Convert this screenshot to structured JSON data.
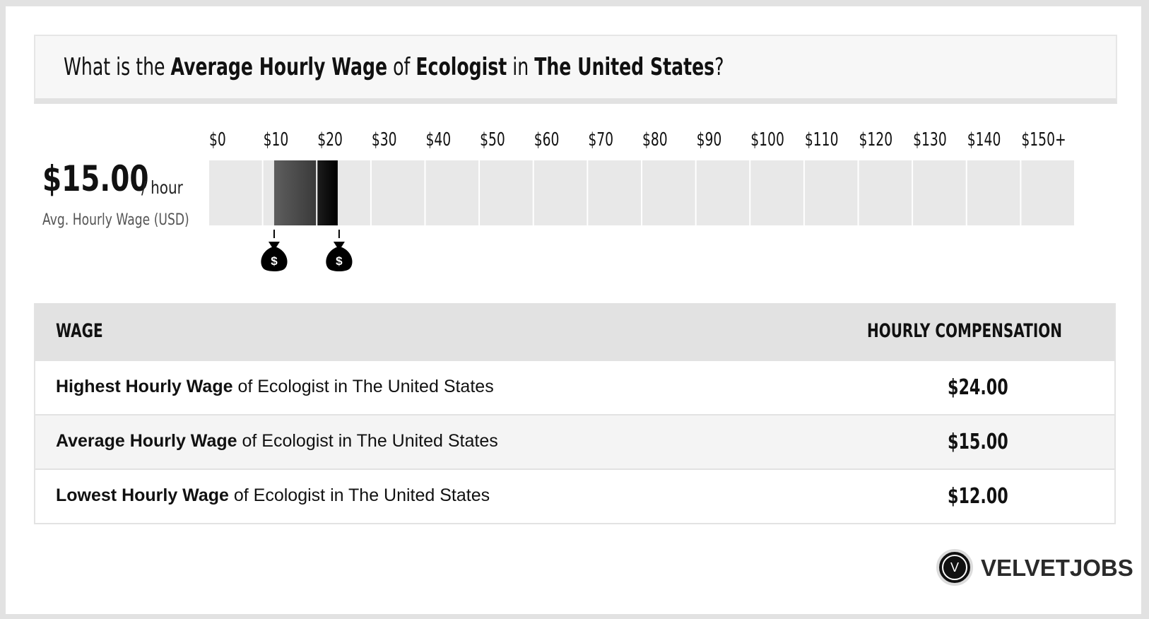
{
  "header": {
    "q_prefix": "What is the ",
    "q_metric": "Average Hourly Wage",
    "q_of": " of ",
    "q_job": "Ecologist",
    "q_in": " in ",
    "q_place": "The United States",
    "q_suffix": "?"
  },
  "summary": {
    "value": "$15.00",
    "unit": "/ hour",
    "label": "Avg. Hourly Wage (USD)"
  },
  "chart_data": {
    "type": "bar",
    "orientation": "horizontal-range",
    "tick_labels": [
      "$0",
      "$10",
      "$20",
      "$30",
      "$40",
      "$50",
      "$60",
      "$70",
      "$80",
      "$90",
      "$100",
      "$110",
      "$120",
      "$130",
      "$140",
      "$150+"
    ],
    "ticks": [
      0,
      10,
      20,
      30,
      40,
      50,
      60,
      70,
      80,
      90,
      100,
      110,
      120,
      130,
      140,
      150
    ],
    "xlim": [
      0,
      160
    ],
    "ranges": [
      {
        "from": 12,
        "to": 20,
        "style": "gradient-dark"
      },
      {
        "from": 20,
        "to": 24,
        "style": "black"
      }
    ],
    "markers": [
      12,
      24
    ],
    "marker_icon": "money-bag-icon",
    "colors": {
      "track": "#e8e8e8",
      "range_dark": "#3a3a3a",
      "range_black": "#000000"
    }
  },
  "table": {
    "col_wage": "WAGE",
    "col_comp": "HOURLY COMPENSATION",
    "rows": [
      {
        "strong": "Highest Hourly Wage",
        "rest": " of Ecologist in The United States",
        "value": "$24.00"
      },
      {
        "strong": "Average Hourly Wage",
        "rest": " of Ecologist in The United States",
        "value": "$15.00"
      },
      {
        "strong": "Lowest Hourly Wage",
        "rest": " of Ecologist in The United States",
        "value": "$12.00"
      }
    ]
  },
  "brand": {
    "logo_letter": "V",
    "name": "VELVETJOBS"
  }
}
